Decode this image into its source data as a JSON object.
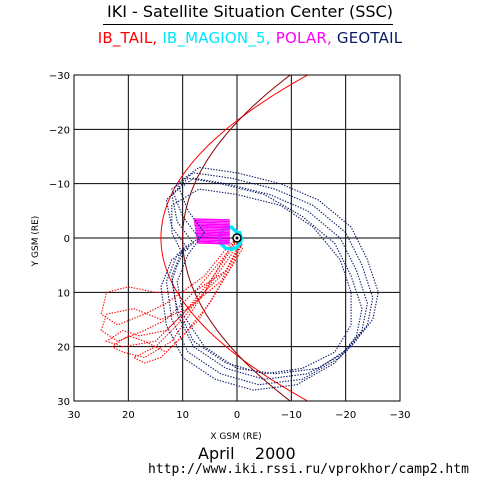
{
  "title": "IKI - Satellite Situation Center (SSC)",
  "legend": [
    {
      "label": "IB_TAIL",
      "color": "#ff0000"
    },
    {
      "label": "IB_MAGION_5",
      "color": "#00e5ff"
    },
    {
      "label": "POLAR",
      "color": "#ff00ff"
    },
    {
      "label": "GEOTAIL",
      "color": "#0a1a66"
    }
  ],
  "legend_separator": ",",
  "footer": {
    "month": "April",
    "year": "2000",
    "url": "http://www.iki.rssi.ru/vprokhor/camp2.htm"
  },
  "chart_data": {
    "type": "line",
    "title": "IKI - Satellite Situation Center (SSC)",
    "xlabel": "X GSM (RE)",
    "ylabel": "Y GSM (RE)",
    "xlim": [
      30,
      -30
    ],
    "ylim": [
      -30,
      30
    ],
    "xticks": [
      30,
      20,
      10,
      0,
      -10,
      -20,
      -30
    ],
    "yticks": [
      -30,
      -20,
      -10,
      0,
      10,
      20,
      30
    ],
    "xtick_labels": [
      "30",
      "20",
      "10",
      "0",
      "−10",
      "−20",
      "−30"
    ],
    "ytick_labels": [
      "−30",
      "−20",
      "−10",
      "0",
      "10",
      "20",
      "30"
    ],
    "grid": true,
    "series": [
      {
        "name": "IB_TAIL",
        "color": "#ff0000",
        "orbits": [
          [
            [
              0,
              0
            ],
            [
              -1,
              1
            ],
            [
              2,
              6
            ],
            [
              8,
              10
            ],
            [
              15,
              10
            ],
            [
              20,
              9
            ],
            [
              24,
              10
            ],
            [
              25,
              14
            ],
            [
              22,
              16
            ],
            [
              17,
              14
            ],
            [
              13,
              12
            ],
            [
              6,
              7
            ],
            [
              2,
              2
            ],
            [
              0,
              0
            ]
          ],
          [
            [
              0,
              0
            ],
            [
              -0.5,
              1.5
            ],
            [
              3,
              8
            ],
            [
              9,
              13
            ],
            [
              14,
              15
            ],
            [
              19,
              13
            ],
            [
              24,
              14
            ],
            [
              25,
              17
            ],
            [
              22,
              19
            ],
            [
              17,
              17
            ],
            [
              13,
              15
            ],
            [
              7,
              9
            ],
            [
              2,
              3
            ],
            [
              0,
              0
            ]
          ],
          [
            [
              0,
              0
            ],
            [
              -1,
              2
            ],
            [
              2,
              7
            ],
            [
              7,
              15
            ],
            [
              13,
              21
            ],
            [
              17,
              19
            ],
            [
              20,
              18
            ],
            [
              23,
              20
            ],
            [
              21,
              21
            ],
            [
              17,
              22
            ],
            [
              12,
              19
            ],
            [
              6,
              10
            ],
            [
              1,
              3
            ],
            [
              0,
              0
            ]
          ],
          [
            [
              0,
              0
            ],
            [
              -1,
              1
            ],
            [
              1,
              5
            ],
            [
              5,
              12
            ],
            [
              10,
              18
            ],
            [
              14,
              22
            ],
            [
              17,
              23
            ],
            [
              19,
              22
            ],
            [
              15,
              20
            ],
            [
              11,
              16
            ],
            [
              6,
              10
            ],
            [
              2,
              3
            ],
            [
              0,
              0
            ]
          ],
          [
            [
              0,
              0
            ],
            [
              -0.5,
              1
            ],
            [
              2,
              6
            ],
            [
              8,
              12
            ],
            [
              13,
              17
            ],
            [
              18,
              18
            ],
            [
              21,
              17
            ],
            [
              24,
              19
            ],
            [
              21,
              20
            ],
            [
              15,
              19
            ],
            [
              10,
              14
            ],
            [
              5,
              8
            ],
            [
              1,
              2
            ],
            [
              0,
              0
            ]
          ]
        ]
      },
      {
        "name": "IB_MAGION_5",
        "color": "#00e5ff",
        "orbits": [
          [
            [
              0,
              -1
            ],
            [
              1,
              -2
            ],
            [
              2.2,
              -1.8
            ],
            [
              3,
              -1
            ],
            [
              3.2,
              0
            ],
            [
              3,
              1
            ],
            [
              2.2,
              1.8
            ],
            [
              1,
              2.1
            ],
            [
              0,
              1.7
            ],
            [
              -0.6,
              1
            ],
            [
              -0.8,
              0
            ],
            [
              -0.5,
              -1
            ],
            [
              0,
              -1
            ]
          ]
        ]
      },
      {
        "name": "POLAR",
        "color": "#ff00ff",
        "region": {
          "x": [
            1.5,
            8
          ],
          "y": [
            -3.5,
            1
          ]
        }
      },
      {
        "name": "GEOTAIL",
        "color": "#0a1a66",
        "orbits": [
          [
            [
              6,
              -1
            ],
            [
              9,
              -5
            ],
            [
              11,
              -10
            ],
            [
              7,
              -13
            ],
            [
              0,
              -12
            ],
            [
              -8,
              -10
            ],
            [
              -15,
              -7
            ],
            [
              -21,
              -2
            ],
            [
              -24,
              4
            ],
            [
              -26,
              10
            ],
            [
              -25,
              15
            ],
            [
              -21,
              20
            ],
            [
              -15,
              24
            ],
            [
              -7,
              25
            ],
            [
              0,
              24
            ],
            [
              6,
              20
            ],
            [
              10,
              14
            ],
            [
              11,
              8
            ],
            [
              9,
              3
            ],
            [
              6,
              -1
            ]
          ],
          [
            [
              7,
              0
            ],
            [
              10,
              -4
            ],
            [
              12,
              -9
            ],
            [
              8,
              -12
            ],
            [
              1,
              -11
            ],
            [
              -7,
              -9
            ],
            [
              -14,
              -6
            ],
            [
              -20,
              -1
            ],
            [
              -23,
              5
            ],
            [
              -25,
              11
            ],
            [
              -24,
              16
            ],
            [
              -20,
              21
            ],
            [
              -13,
              25
            ],
            [
              -5,
              26
            ],
            [
              2,
              24
            ],
            [
              8,
              20
            ],
            [
              11,
              14
            ],
            [
              12,
              7
            ],
            [
              10,
              2
            ],
            [
              7,
              0
            ]
          ],
          [
            [
              8,
              1
            ],
            [
              11,
              -3
            ],
            [
              12,
              -8
            ],
            [
              8,
              -11
            ],
            [
              2,
              -10
            ],
            [
              -6,
              -8
            ],
            [
              -13,
              -5
            ],
            [
              -19,
              0
            ],
            [
              -22,
              6
            ],
            [
              -24,
              12
            ],
            [
              -23,
              17
            ],
            [
              -19,
              22
            ],
            [
              -12,
              26
            ],
            [
              -4,
              27
            ],
            [
              3,
              25
            ],
            [
              9,
              21
            ],
            [
              12,
              15
            ],
            [
              13,
              8
            ],
            [
              11,
              3
            ],
            [
              8,
              1
            ]
          ],
          [
            [
              9,
              2
            ],
            [
              12,
              -2
            ],
            [
              13,
              -7
            ],
            [
              9,
              -11
            ],
            [
              3,
              -10
            ],
            [
              -5,
              -8
            ],
            [
              -12,
              -4
            ],
            [
              -18,
              1
            ],
            [
              -21,
              7
            ],
            [
              -23,
              13
            ],
            [
              -22,
              18
            ],
            [
              -18,
              23
            ],
            [
              -11,
              27
            ],
            [
              -3,
              28
            ],
            [
              4,
              26
            ],
            [
              10,
              22
            ],
            [
              13,
              16
            ],
            [
              14,
              9
            ],
            [
              12,
              4
            ],
            [
              9,
              2
            ]
          ],
          [
            [
              10,
              3
            ],
            [
              12,
              -1
            ],
            [
              12,
              -6
            ],
            [
              7,
              -9
            ],
            [
              0,
              -8
            ],
            [
              -8,
              -6
            ],
            [
              -14,
              -2
            ],
            [
              -19,
              4
            ],
            [
              -21,
              10
            ],
            [
              -21,
              16
            ],
            [
              -18,
              21
            ],
            [
              -12,
              24
            ],
            [
              -5,
              25
            ],
            [
              2,
              23
            ],
            [
              8,
              19
            ],
            [
              11,
              13
            ],
            [
              12,
              8
            ],
            [
              11,
              5
            ],
            [
              10,
              3
            ]
          ]
        ]
      }
    ],
    "model_boundaries": {
      "bow_shock": {
        "color": "#ff0000",
        "standoff_x": 14
      },
      "magnetopause": {
        "color": "#8b0000",
        "standoff_x": 10
      }
    },
    "earth_marker": {
      "x": 0,
      "y": 0
    }
  }
}
